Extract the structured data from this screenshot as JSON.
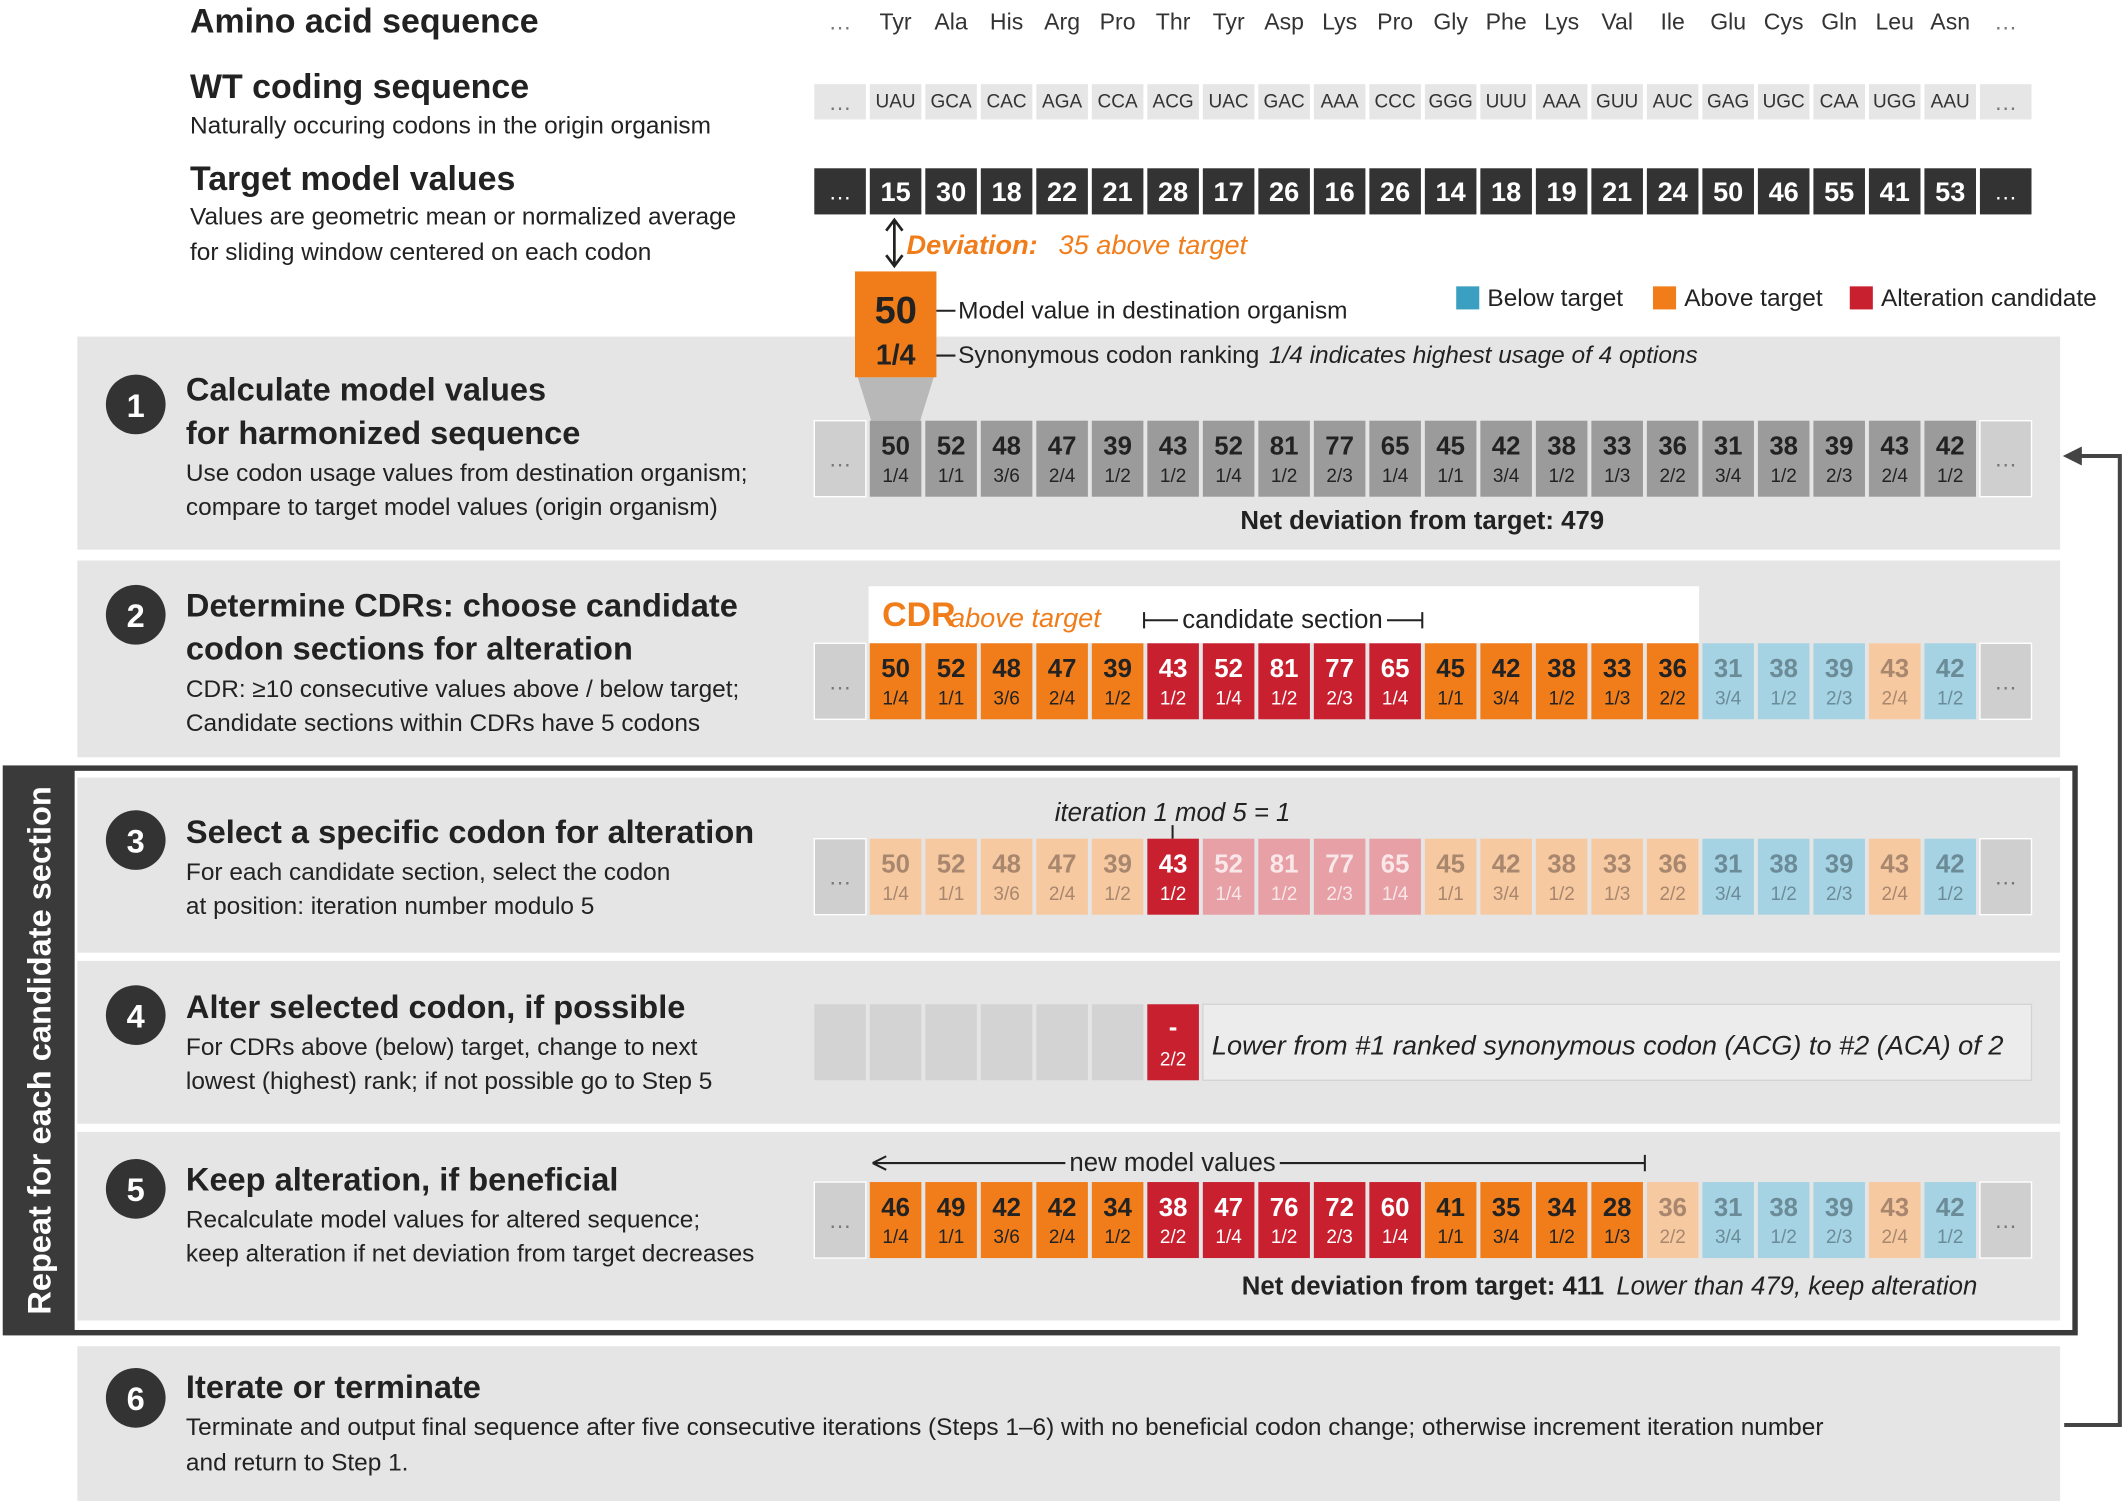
{
  "header": {
    "amino_label": "Amino acid sequence",
    "ellipsis": "…",
    "amino": [
      "Tyr",
      "Ala",
      "His",
      "Arg",
      "Pro",
      "Thr",
      "Tyr",
      "Asp",
      "Lys",
      "Pro",
      "Gly",
      "Phe",
      "Lys",
      "Val",
      "Ile",
      "Glu",
      "Cys",
      "Gln",
      "Leu",
      "Asn"
    ],
    "wt_label": "WT coding sequence",
    "wt_note": "Naturally occuring codons in the origin organism",
    "codons": [
      "UAU",
      "GCA",
      "CAC",
      "AGA",
      "CCA",
      "ACG",
      "UAC",
      "GAC",
      "AAA",
      "CCC",
      "GGG",
      "UUU",
      "AAA",
      "GUU",
      "AUC",
      "GAG",
      "UGC",
      "CAA",
      "UGG",
      "AAU"
    ],
    "target_label": "Target model values",
    "target_note": [
      "Values are geometric mean or normalized average",
      "for sliding window centered on each codon"
    ],
    "targets": [
      15,
      30,
      18,
      22,
      21,
      28,
      17,
      26,
      16,
      26,
      14,
      18,
      19,
      21,
      24,
      50,
      46,
      55,
      41,
      53
    ],
    "deviation_label": "Deviation:",
    "deviation_text": "35 above target",
    "callout": {
      "value": 50,
      "rank": "1/4",
      "value_note": "Model value in destination organism",
      "rank_note": "Synonymous codon ranking",
      "rank_hint": "1/4 indicates highest usage of 4 options"
    }
  },
  "legend": [
    "Below target",
    "Above target",
    "Alteration candidate"
  ],
  "steps": [
    {
      "number": 1,
      "title": [
        "Calculate model values",
        "for harmonized sequence"
      ],
      "description": [
        "Use codon usage values from destination organism;",
        "compare to target model values (origin organism)"
      ]
    },
    {
      "number": 2,
      "title": [
        "Determine CDRs: choose candidate",
        "codon sections for alteration"
      ],
      "description": [
        "CDR: ≥10 consecutive values above / below target;",
        "Candidate sections within CDRs have 5 codons"
      ]
    },
    {
      "number": 3,
      "title": [
        "Select a specific codon for alteration"
      ],
      "description": [
        "For each candidate section, select the codon",
        "at position: iteration number modulo 5"
      ]
    },
    {
      "number": 4,
      "title": [
        "Alter selected codon, if possible"
      ],
      "description": [
        "For CDRs above (below) target, change to next",
        "lowest (highest) rank; if not possible go to Step 5"
      ]
    },
    {
      "number": 5,
      "title": [
        "Keep alteration, if beneficial"
      ],
      "description": [
        "Recalculate model values for altered sequence;",
        "keep alteration if net deviation from target decreases"
      ]
    },
    {
      "number": 6,
      "title": [
        "Iterate or terminate"
      ],
      "description": [
        "Terminate and output final sequence after five consecutive iterations (Steps 1–6) with no beneficial codon change; otherwise increment iteration number",
        "and return to Step 1."
      ]
    }
  ],
  "harmonized": {
    "values": [
      50,
      52,
      48,
      47,
      39,
      43,
      52,
      81,
      77,
      65,
      45,
      42,
      38,
      33,
      36,
      31,
      38,
      39,
      43,
      42
    ],
    "ranks": [
      "1/4",
      "1/1",
      "3/6",
      "2/4",
      "1/2",
      "1/2",
      "1/4",
      "1/2",
      "2/3",
      "1/4",
      "1/1",
      "3/4",
      "1/2",
      "1/3",
      "2/2",
      "3/4",
      "1/2",
      "2/3",
      "2/4",
      "1/2"
    ],
    "net_deviation": "Net deviation from target: 479"
  },
  "cdr": {
    "label": "CDR",
    "qualifier": "above target",
    "candidate": "candidate section"
  },
  "iteration_note": "iteration 1 mod 5 = 1",
  "alteration": {
    "value": "-",
    "rank": "2/2",
    "note": "Lower from #1 ranked synonymous codon (ACG) to #2 (ACA) of 2"
  },
  "altered": {
    "label": "new model values",
    "values": [
      46,
      49,
      42,
      42,
      34,
      38,
      47,
      76,
      72,
      60,
      41,
      35,
      34,
      28,
      36,
      31,
      38,
      39,
      43,
      42
    ],
    "ranks": [
      "1/4",
      "1/1",
      "3/6",
      "2/4",
      "1/2",
      "2/2",
      "1/4",
      "1/2",
      "2/3",
      "1/4",
      "1/1",
      "3/4",
      "1/2",
      "1/3",
      "2/2",
      "3/4",
      "1/2",
      "2/3",
      "2/4",
      "1/2"
    ],
    "net_deviation": "Net deviation from target: 411",
    "net_deviation_note": "Lower than 479, keep alteration"
  },
  "repeat_label": "Repeat for each candidate section"
}
